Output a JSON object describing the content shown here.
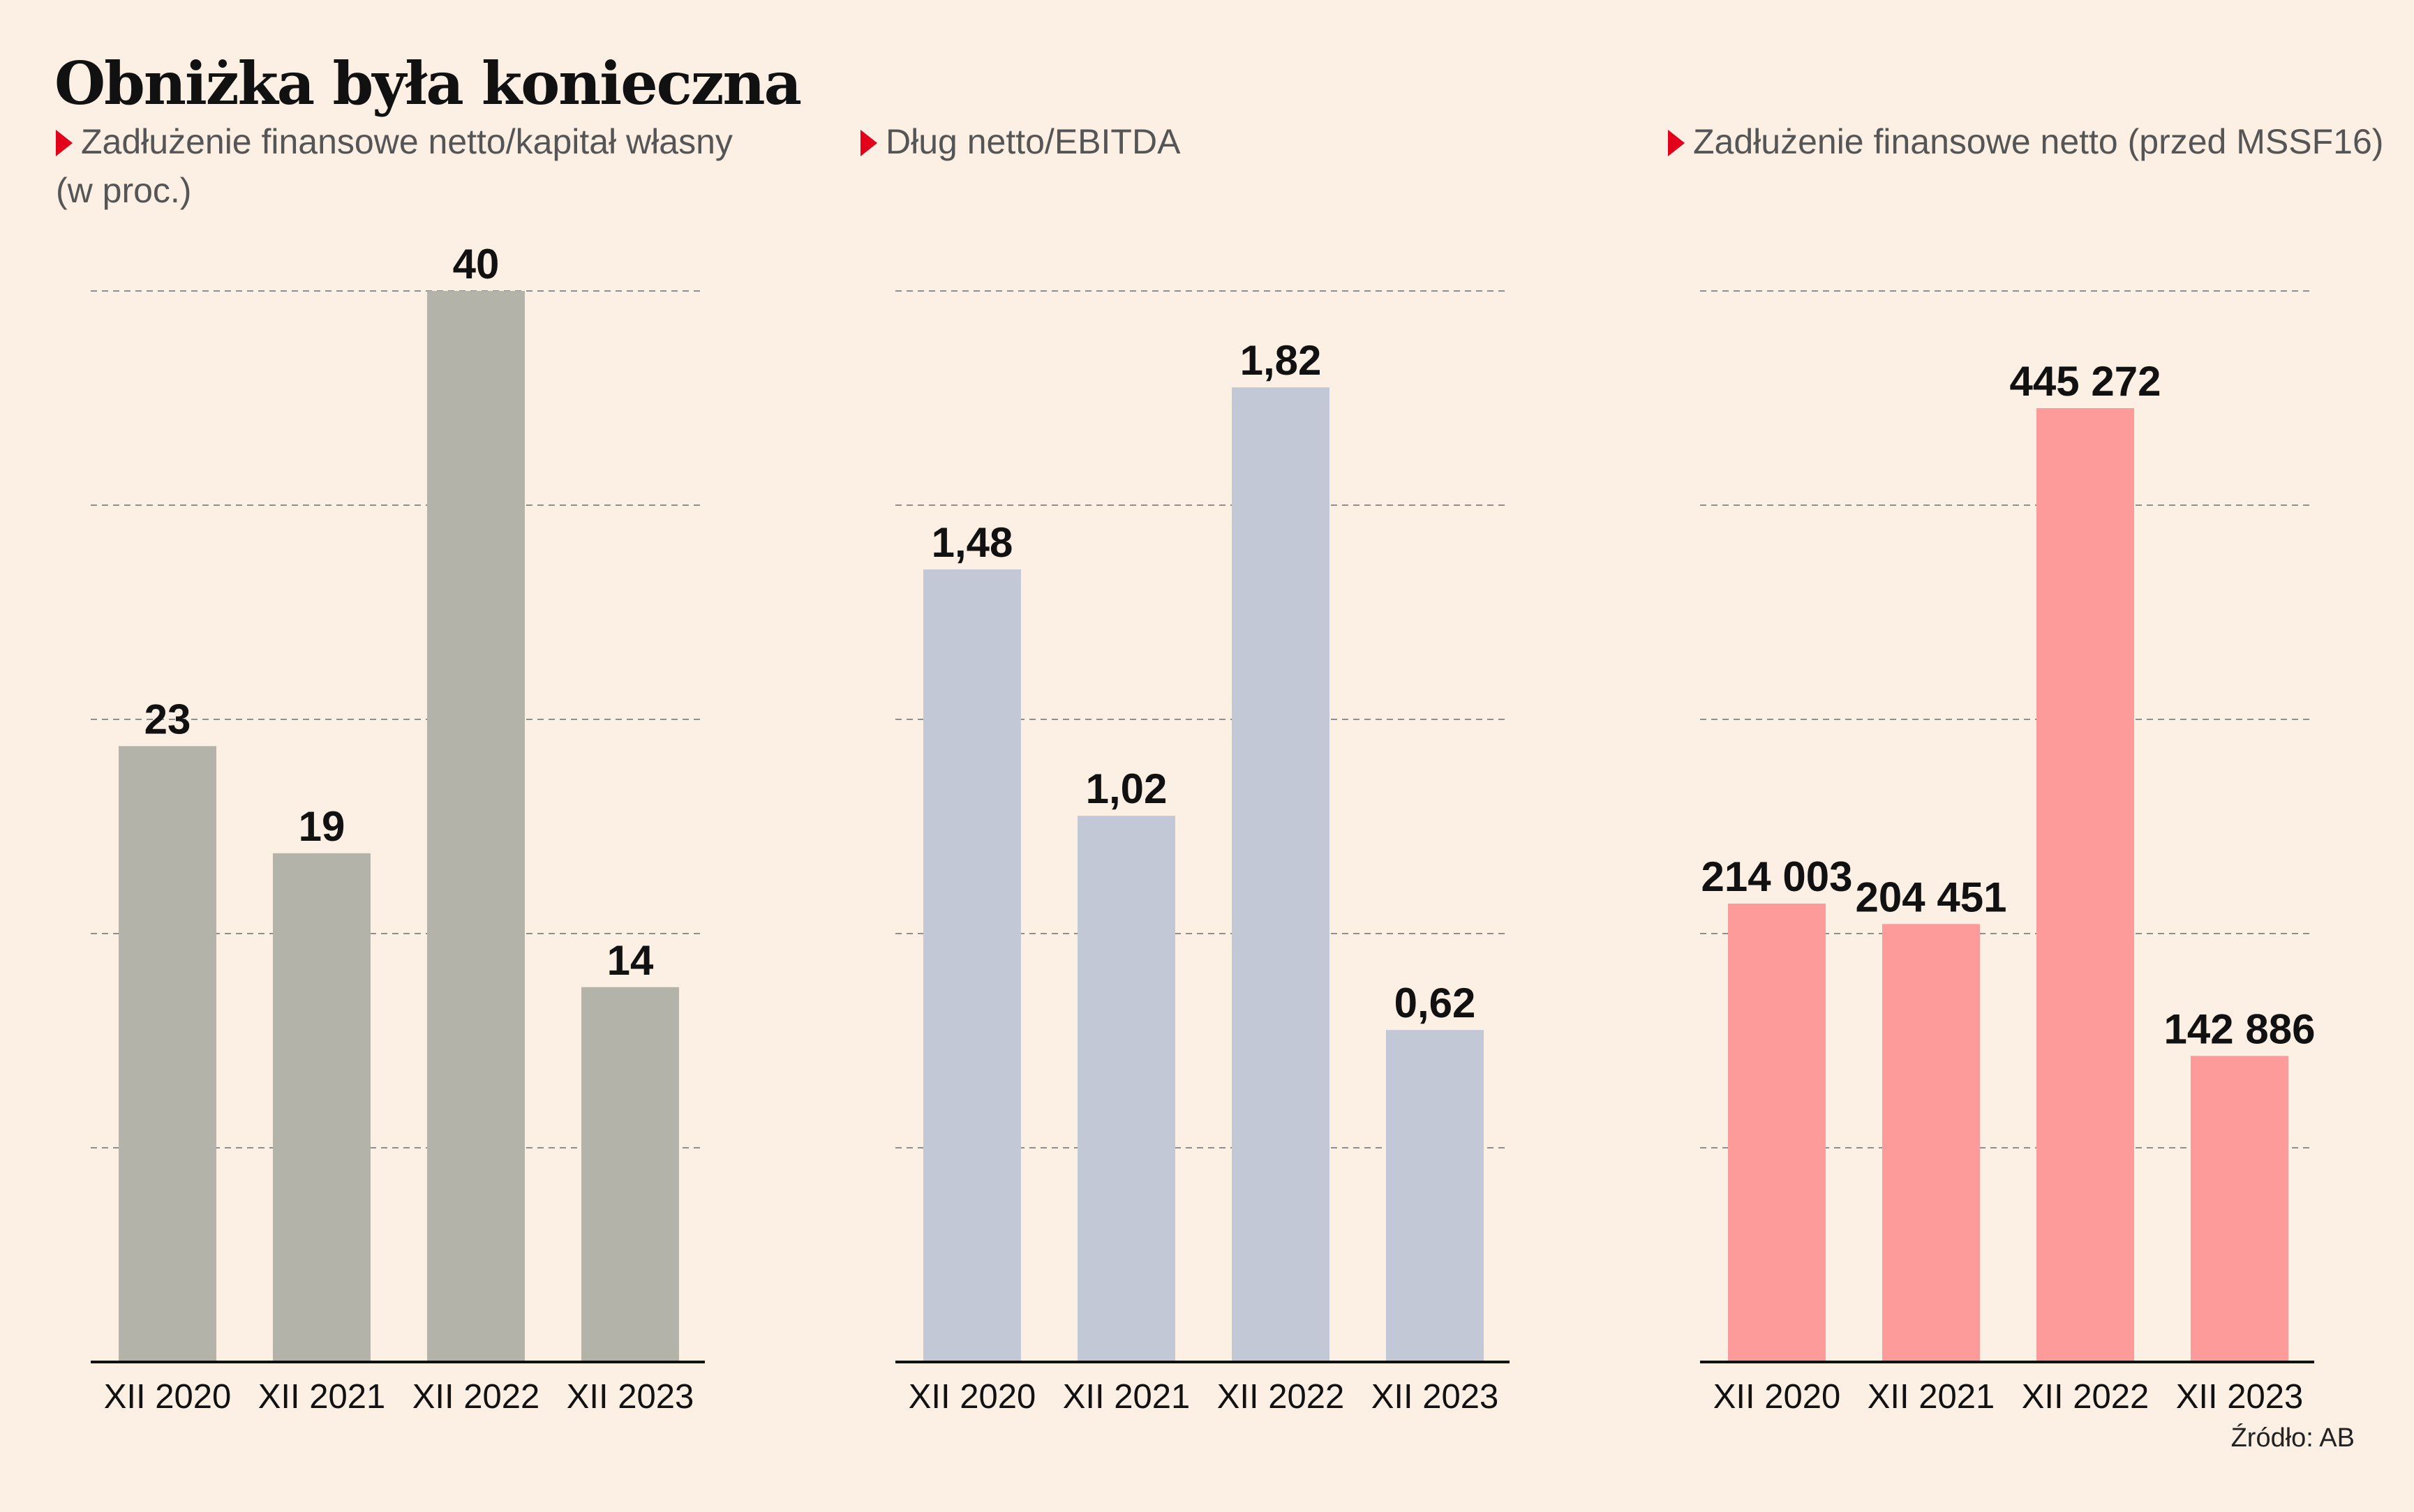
{
  "title": "Obniżka była konieczna",
  "source": "Źródło: AB",
  "chart_data": [
    {
      "type": "bar",
      "title": "Zadłużenie finansowe netto/kapitał własny (w proc.)",
      "title_lines": [
        "Zadłużenie finansowe netto/kapitał własny",
        "(w proc.)"
      ],
      "categories": [
        "XII 2020",
        "XII 2021",
        "XII 2022",
        "XII 2023"
      ],
      "values": [
        23,
        19,
        40,
        14
      ],
      "value_labels": [
        "23",
        "19",
        "40",
        "14"
      ],
      "ylim": [
        0,
        40
      ],
      "gridlines": [
        8,
        16,
        24,
        32,
        40
      ],
      "grid": true,
      "color": "#b3b3aa"
    },
    {
      "type": "bar",
      "title": "Dług netto/EBITDA",
      "title_lines": [
        "Dług netto/EBITDA"
      ],
      "categories": [
        "XII 2020",
        "XII 2021",
        "XII 2022",
        "XII 2023"
      ],
      "values": [
        1.48,
        1.02,
        1.82,
        0.62
      ],
      "value_labels": [
        "1,48",
        "1,02",
        "1,82",
        "0,62"
      ],
      "ylim": [
        0,
        2
      ],
      "gridlines": [
        0.4,
        0.8,
        1.2,
        1.6,
        2.0
      ],
      "grid": true,
      "color": "#c3c8d7"
    },
    {
      "type": "bar",
      "title": "Zadłużenie finansowe netto (przed MSSF16)",
      "title_lines": [
        "Zadłużenie finansowe netto (przed MSSF16)"
      ],
      "categories": [
        "XII 2020",
        "XII 2021",
        "XII 2022",
        "XII 2023"
      ],
      "values": [
        214003,
        204451,
        445272,
        142886
      ],
      "value_labels": [
        "214 003",
        "204 451",
        "445 272",
        "142 886"
      ],
      "ylim": [
        0,
        500000
      ],
      "gridlines": [
        100000,
        200000,
        300000,
        400000,
        500000
      ],
      "grid": true,
      "color": "#fd9a9a"
    }
  ]
}
